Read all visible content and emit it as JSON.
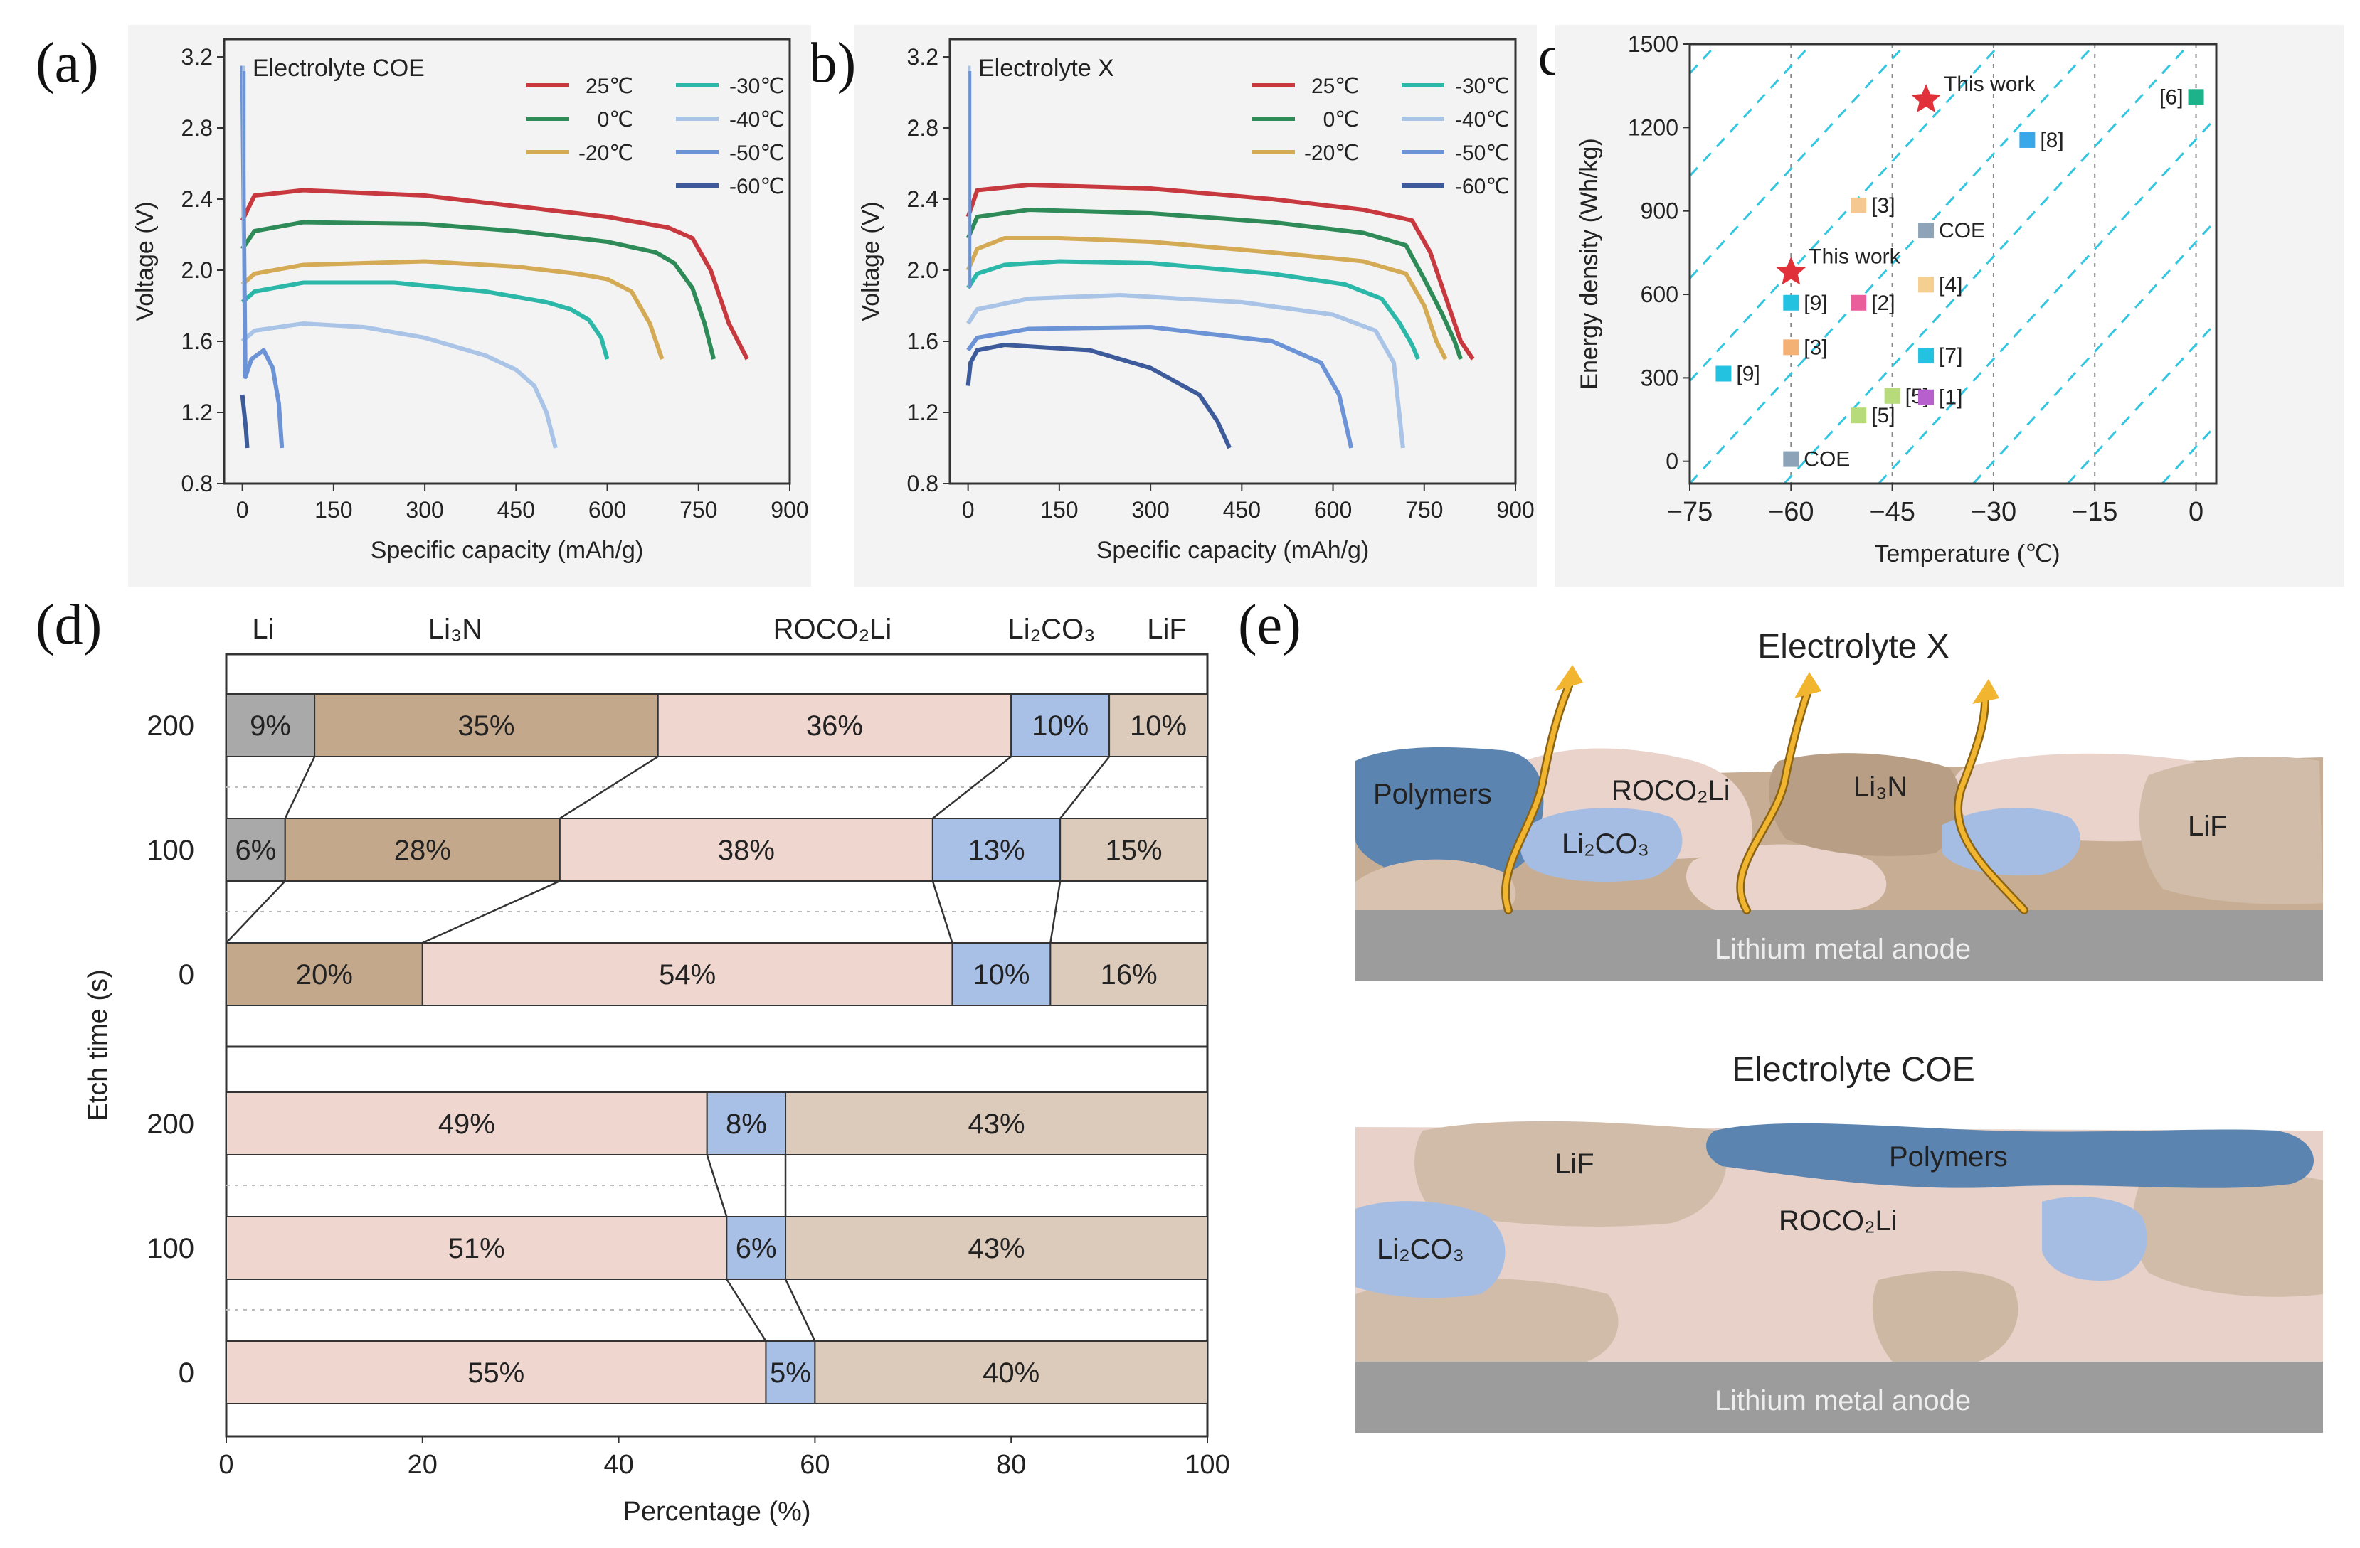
{
  "chart_data": [
    {
      "panel": "(a)",
      "type": "line",
      "title": "Electrolyte COE",
      "xlabel": "Specific capacity (mAh/g)",
      "ylabel": "Voltage (V)",
      "xlim": [
        -30,
        900
      ],
      "ylim": [
        0.8,
        3.3
      ],
      "xticks": [
        "0",
        "150",
        "300",
        "450",
        "600",
        "750",
        "900"
      ],
      "yticks": [
        "0.8",
        "1.2",
        "1.6",
        "2.0",
        "2.4",
        "2.8",
        "3.2"
      ],
      "series": [
        {
          "name": "25℃",
          "color": "#c8393f",
          "x": [
            0,
            20,
            100,
            300,
            450,
            600,
            700,
            740,
            770,
            800,
            830
          ],
          "y": [
            2.28,
            2.42,
            2.45,
            2.42,
            2.36,
            2.3,
            2.24,
            2.18,
            2.0,
            1.7,
            1.5
          ]
        },
        {
          "name": "0℃",
          "color": "#2e8b57",
          "x": [
            0,
            20,
            100,
            300,
            450,
            600,
            680,
            710,
            740,
            760,
            775
          ],
          "y": [
            2.12,
            2.22,
            2.27,
            2.26,
            2.22,
            2.16,
            2.1,
            2.04,
            1.9,
            1.7,
            1.5
          ]
        },
        {
          "name": "-20℃",
          "color": "#d4aa55",
          "x": [
            0,
            20,
            100,
            300,
            450,
            550,
            600,
            640,
            670,
            690
          ],
          "y": [
            1.92,
            1.98,
            2.03,
            2.05,
            2.02,
            1.98,
            1.95,
            1.88,
            1.7,
            1.5
          ]
        },
        {
          "name": "-30℃",
          "color": "#2bb8a8",
          "x": [
            0,
            20,
            100,
            250,
            400,
            500,
            540,
            570,
            590,
            600
          ],
          "y": [
            1.82,
            1.88,
            1.93,
            1.93,
            1.88,
            1.82,
            1.78,
            1.72,
            1.62,
            1.5
          ]
        },
        {
          "name": "-40℃",
          "color": "#a9c4e6",
          "x": [
            0,
            20,
            100,
            200,
            300,
            400,
            450,
            480,
            500,
            515
          ],
          "y": [
            1.6,
            1.66,
            1.7,
            1.68,
            1.62,
            1.52,
            1.44,
            1.35,
            1.2,
            1.0
          ]
        },
        {
          "name": "-50℃",
          "color": "#6b93d6",
          "x": [
            0,
            2,
            5,
            15,
            35,
            50,
            60,
            65
          ],
          "y": [
            3.15,
            2.4,
            1.4,
            1.5,
            1.55,
            1.45,
            1.25,
            1.0
          ]
        },
        {
          "name": "-60℃",
          "color": "#3d5a9a",
          "x": [
            0,
            3,
            6,
            8
          ],
          "y": [
            1.3,
            1.2,
            1.1,
            1.0
          ]
        }
      ]
    },
    {
      "panel": "(b)",
      "type": "line",
      "title": "Electrolyte X",
      "xlabel": "Specific capacity (mAh/g)",
      "ylabel": "Voltage (V)",
      "xlim": [
        -30,
        900
      ],
      "ylim": [
        0.8,
        3.3
      ],
      "xticks": [
        "0",
        "150",
        "300",
        "450",
        "600",
        "750",
        "900"
      ],
      "yticks": [
        "0.8",
        "1.2",
        "1.6",
        "2.0",
        "2.4",
        "2.8",
        "3.2"
      ],
      "series": [
        {
          "name": "25℃",
          "color": "#c8393f",
          "x": [
            0,
            15,
            100,
            300,
            500,
            650,
            730,
            760,
            790,
            810,
            830
          ],
          "y": [
            2.3,
            2.45,
            2.48,
            2.46,
            2.4,
            2.34,
            2.28,
            2.1,
            1.8,
            1.6,
            1.5
          ]
        },
        {
          "name": "0℃",
          "color": "#2e8b57",
          "x": [
            0,
            15,
            100,
            300,
            500,
            650,
            720,
            750,
            780,
            800,
            810
          ],
          "y": [
            2.18,
            2.3,
            2.34,
            2.32,
            2.27,
            2.21,
            2.14,
            1.95,
            1.75,
            1.6,
            1.5
          ]
        },
        {
          "name": "-20℃",
          "color": "#d4aa55",
          "x": [
            0,
            15,
            60,
            150,
            300,
            500,
            650,
            720,
            750,
            770,
            785
          ],
          "y": [
            2.0,
            2.12,
            2.18,
            2.18,
            2.16,
            2.1,
            2.05,
            1.98,
            1.8,
            1.6,
            1.5
          ]
        },
        {
          "name": "-30℃",
          "color": "#2bb8a8",
          "x": [
            0,
            15,
            60,
            150,
            300,
            500,
            620,
            680,
            710,
            730,
            740
          ],
          "y": [
            1.9,
            1.98,
            2.03,
            2.05,
            2.04,
            1.98,
            1.92,
            1.84,
            1.7,
            1.58,
            1.5
          ]
        },
        {
          "name": "-40℃",
          "color": "#a9c4e6",
          "x": [
            0,
            15,
            100,
            250,
            450,
            600,
            670,
            700,
            715
          ],
          "y": [
            1.7,
            1.78,
            1.84,
            1.86,
            1.82,
            1.75,
            1.66,
            1.48,
            1.0
          ]
        },
        {
          "name": "-50℃",
          "color": "#6b93d6",
          "x": [
            0,
            15,
            100,
            300,
            500,
            580,
            610,
            630
          ],
          "y": [
            1.55,
            1.62,
            1.67,
            1.68,
            1.6,
            1.48,
            1.3,
            1.0
          ]
        },
        {
          "name": "-60℃",
          "color": "#3d5a9a",
          "x": [
            0,
            4,
            15,
            60,
            200,
            300,
            380,
            410,
            430
          ],
          "y": [
            1.35,
            1.48,
            1.55,
            1.58,
            1.55,
            1.45,
            1.3,
            1.15,
            1.0
          ]
        }
      ]
    },
    {
      "panel": "(c)",
      "type": "scatter",
      "xlabel": "Temperature (℃)",
      "ylabel": "Energy density (Wh/kg)",
      "xlim": [
        -75,
        3
      ],
      "ylim": [
        -80,
        1500
      ],
      "xticks": [
        "−75",
        "−60",
        "−45",
        "−30",
        "−15",
        "0"
      ],
      "yticks": [
        "0",
        "300",
        "600",
        "900",
        "1200",
        "1500"
      ],
      "points": [
        {
          "label": "This work",
          "x": -40,
          "y": 1300,
          "color": "#e0303a",
          "marker": "star"
        },
        {
          "label": "This work",
          "x": -60,
          "y": 680,
          "color": "#e0303a",
          "marker": "star"
        },
        {
          "label": "[6]",
          "x": 0,
          "y": 1310,
          "color": "#1db38a",
          "marker": "square"
        },
        {
          "label": "[8]",
          "x": -25,
          "y": 1155,
          "color": "#3aa8e8",
          "marker": "square"
        },
        {
          "label": "[3]",
          "x": -50,
          "y": 920,
          "color": "#f6c891",
          "marker": "square"
        },
        {
          "label": "COE",
          "x": -40,
          "y": 830,
          "color": "#8da3b8",
          "marker": "square"
        },
        {
          "label": "[4]",
          "x": -40,
          "y": 635,
          "color": "#f5cf90",
          "marker": "square"
        },
        {
          "label": "[9]",
          "x": -60,
          "y": 570,
          "color": "#22c2e0",
          "marker": "square"
        },
        {
          "label": "[2]",
          "x": -50,
          "y": 570,
          "color": "#ea5e9c",
          "marker": "square"
        },
        {
          "label": "[3]",
          "x": -60,
          "y": 410,
          "color": "#f4b176",
          "marker": "square"
        },
        {
          "label": "[7]",
          "x": -40,
          "y": 380,
          "color": "#22c2e0",
          "marker": "square"
        },
        {
          "label": "[9]",
          "x": -70,
          "y": 315,
          "color": "#22c2e0",
          "marker": "square"
        },
        {
          "label": "[5]",
          "x": -50,
          "y": 165,
          "color": "#b7db7a",
          "marker": "square"
        },
        {
          "label": "[5]",
          "x": -45,
          "y": 235,
          "color": "#b7db7a",
          "marker": "square"
        },
        {
          "label": "[1]",
          "x": -40,
          "y": 230,
          "color": "#b65fcd",
          "marker": "square"
        },
        {
          "label": "COE",
          "x": -60,
          "y": 8,
          "color": "#8da3b8",
          "marker": "square"
        }
      ]
    },
    {
      "panel": "(d)",
      "type": "bar",
      "orientation": "horizontal-stacked",
      "xlabel": "Percentage (%)",
      "ylabel": "Etch time (s)",
      "xlim": [
        0,
        100
      ],
      "xticks": [
        "0",
        "20",
        "40",
        "60",
        "80",
        "100"
      ],
      "components": [
        "Li",
        "Li₃N",
        "ROCO₂Li",
        "Li₂CO₃",
        "LiF"
      ],
      "component_colors": {
        "Li": "#a9a9a9",
        "Li₃N": "#c4a88c",
        "ROCO₂Li": "#efd6cf",
        "Li₂CO₃": "#a8bfe6",
        "LiF": "#dccbbb"
      },
      "groups": [
        {
          "name": "Electrolyte X",
          "rows": [
            {
              "etch_time": "200",
              "segments": [
                {
                  "c": "Li",
                  "v": 9
                },
                {
                  "c": "Li₃N",
                  "v": 35
                },
                {
                  "c": "ROCO₂Li",
                  "v": 36
                },
                {
                  "c": "Li₂CO₃",
                  "v": 10
                },
                {
                  "c": "LiF",
                  "v": 10
                }
              ]
            },
            {
              "etch_time": "100",
              "segments": [
                {
                  "c": "Li",
                  "v": 6
                },
                {
                  "c": "Li₃N",
                  "v": 28
                },
                {
                  "c": "ROCO₂Li",
                  "v": 38
                },
                {
                  "c": "Li₂CO₃",
                  "v": 13
                },
                {
                  "c": "LiF",
                  "v": 15
                }
              ]
            },
            {
              "etch_time": "0",
              "segments": [
                {
                  "c": "Li₃N",
                  "v": 20
                },
                {
                  "c": "ROCO₂Li",
                  "v": 54
                },
                {
                  "c": "Li₂CO₃",
                  "v": 10
                },
                {
                  "c": "LiF",
                  "v": 16
                }
              ]
            }
          ]
        },
        {
          "name": "Electrolyte COE",
          "rows": [
            {
              "etch_time": "200",
              "segments": [
                {
                  "c": "ROCO₂Li",
                  "v": 49
                },
                {
                  "c": "Li₂CO₃",
                  "v": 8
                },
                {
                  "c": "LiF",
                  "v": 43
                }
              ]
            },
            {
              "etch_time": "100",
              "segments": [
                {
                  "c": "ROCO₂Li",
                  "v": 51
                },
                {
                  "c": "Li₂CO₃",
                  "v": 6
                },
                {
                  "c": "LiF",
                  "v": 43
                }
              ]
            },
            {
              "etch_time": "0",
              "segments": [
                {
                  "c": "ROCO₂Li",
                  "v": 55
                },
                {
                  "c": "Li₂CO₃",
                  "v": 5
                },
                {
                  "c": "LiF",
                  "v": 40
                }
              ]
            }
          ]
        }
      ]
    }
  ],
  "panel_tags": {
    "a": "(a)",
    "b": "(b)",
    "c": "(c)",
    "d": "(d)",
    "e": "(e)"
  },
  "panel_e": {
    "top_title": "Electrolyte X",
    "bottom_title": "Electrolyte COE",
    "anode": "Lithium metal anode",
    "polymers": "Polymers",
    "roco2li": "ROCO₂Li",
    "li3n": "Li₃N",
    "li2co3": "Li₂CO₃",
    "lif": "LiF",
    "colors": {
      "anode": "#9c9c9c",
      "polymer": "#5b84b0",
      "roco": "#e9d3cb",
      "li3n": "#b79e85",
      "carb": "#a6bde3",
      "lif": "#d0bca8",
      "arrow": "#f2b530"
    }
  }
}
